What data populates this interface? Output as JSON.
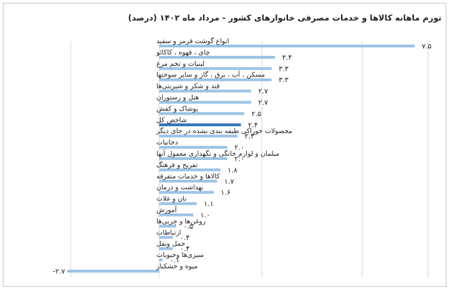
{
  "chart_data": {
    "type": "bar",
    "orientation": "horizontal",
    "title": "تورم ماهانه کالاها و خدمات مصرفی خانوارهای کشور - مرداد ماه ۱۴۰۲ (درصد)",
    "categories": [
      "انواع گوشت قرمز و سفید",
      "چای ، قهوه ، کاکائو",
      "لبنیات و تخم مرغ",
      "مسکن ، آب ، برق ، گاز و سایر سوختها",
      "قند و شکر و شیرینی‌ها",
      "هتل و رستوران",
      "پوشاک و کفش",
      "شاخص کل",
      "محصولات خوراکی طبقه بندی نشده در جای دیگر",
      "دخانیات",
      "مبلمان و لوازم خانگی و نگهداری معمول آنها",
      "تفریح و فرهنگ",
      "کالاها و خدمات متفرقه",
      "بهداشت و درمان",
      "نان و غلات",
      "آموزش",
      "روغن‌ها و چربی‌ها",
      "ارتباطات",
      "حمل ونقل",
      "سبزی‌ها وحبوبات",
      "میوه و خشکبار"
    ],
    "values": [
      7.5,
      3.4,
      3.3,
      3.3,
      2.7,
      2.7,
      2.5,
      2.4,
      2.3,
      2.0,
      2.0,
      1.8,
      1.7,
      1.6,
      1.1,
      1.0,
      0.5,
      0.4,
      0.4,
      0.1,
      -2.7
    ],
    "value_labels": [
      "۷.۵",
      "۳.۴",
      "۳.۳",
      "۳.۳",
      "۲.۷",
      "۲.۷",
      "۲.۵",
      "۲.۴",
      "۲.۳",
      "۲.۰",
      "۲.۰",
      "۱.۸",
      "۱.۷",
      "۱.۶",
      "۱.۱",
      "۱.۰",
      "۰.۵",
      "۰.۴",
      "۰.۴",
      "۰.۱",
      "-۲.۷"
    ],
    "highlight_index": 7,
    "xlim": [
      -2.7,
      7.5
    ],
    "grid": true,
    "colors": {
      "bar": "#9dc3e6",
      "highlight": "#2e75b6",
      "grid": "#d9d9d9"
    }
  }
}
